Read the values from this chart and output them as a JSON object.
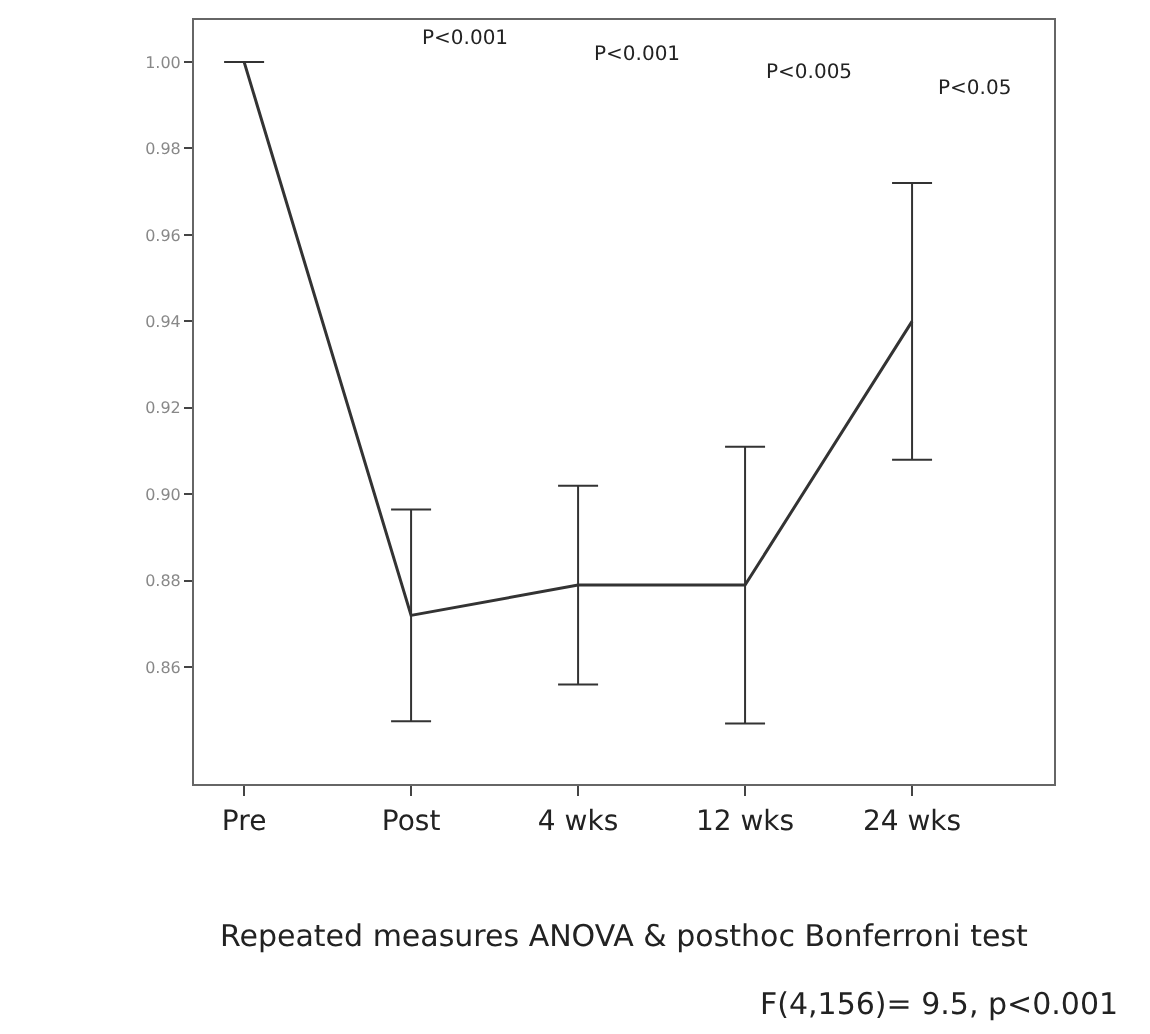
{
  "chart_data": {
    "type": "line",
    "categories": [
      "Pre",
      "Post",
      "4 wks",
      "12 wks",
      "24 wks"
    ],
    "series": [
      {
        "color": "#333333",
        "values": [
          1.0,
          0.872,
          0.879,
          0.879,
          0.94
        ],
        "errors": [
          null,
          0.0245,
          0.023,
          0.032,
          0.032
        ]
      }
    ],
    "ylim": [
      0.833,
      1.0097
    ],
    "yticks": [
      {
        "value": 0.86,
        "label": "0.86"
      },
      {
        "value": 0.88,
        "label": "0.88"
      },
      {
        "value": 0.9,
        "label": "0.90"
      },
      {
        "value": 0.92,
        "label": "0.92"
      },
      {
        "value": 0.94,
        "label": "0.94"
      },
      {
        "value": 0.96,
        "label": "0.96"
      },
      {
        "value": 0.98,
        "label": "0.98"
      },
      {
        "value": 1.0,
        "label": "1.00"
      }
    ],
    "grid": false,
    "marker": "none",
    "line_style": "solid",
    "annotations": [
      "P<0.001",
      "P<0.001",
      "P<0.005",
      "P<0.05",
      "Repeated measures ANOVA & posthoc Bonferroni test",
      "F(4,156)= 9.5, p<0.001"
    ]
  }
}
